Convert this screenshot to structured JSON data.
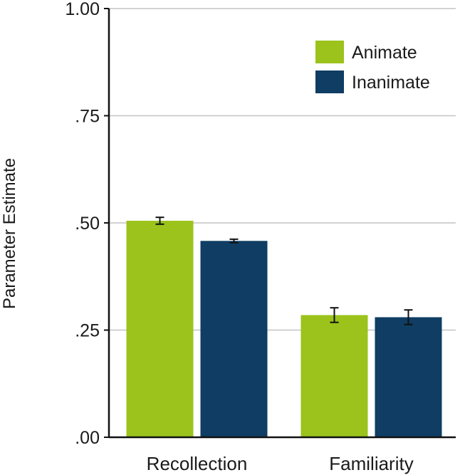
{
  "chart_data": {
    "type": "bar",
    "title": "",
    "xlabel": "",
    "ylabel": "Parameter Estimate",
    "ylim": [
      0,
      1
    ],
    "yticks": [
      0,
      0.25,
      0.5,
      0.75,
      1.0
    ],
    "ytick_labels": [
      ".00",
      ".25",
      ".50",
      ".75",
      "1.00"
    ],
    "grid": true,
    "legend_position": "top-right",
    "categories": [
      "Recollection",
      "Familiarity"
    ],
    "series": [
      {
        "name": "Animate",
        "color": "#9bc31c",
        "values": [
          0.505,
          0.285
        ],
        "errors": [
          0.008,
          0.017
        ]
      },
      {
        "name": "Inanimate",
        "color": "#0f3d63",
        "values": [
          0.458,
          0.28
        ],
        "errors": [
          0.004,
          0.017
        ]
      }
    ]
  }
}
